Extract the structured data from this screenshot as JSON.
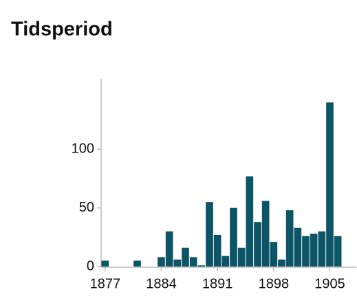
{
  "chart_data": {
    "type": "histogram",
    "title": "Tidsperiod",
    "bins": [
      1877,
      1878,
      1879,
      1880,
      1881,
      1882,
      1883,
      1884,
      1885,
      1886,
      1887,
      1888,
      1889,
      1890,
      1891,
      1892,
      1893,
      1894,
      1895,
      1896,
      1897,
      1898,
      1899,
      1900,
      1901,
      1902,
      1903,
      1904,
      1905,
      1906,
      1907
    ],
    "values": [
      5,
      0,
      0,
      0,
      5,
      0,
      0,
      8,
      30,
      6,
      16,
      8,
      1,
      55,
      27,
      9,
      50,
      16,
      77,
      38,
      56,
      21,
      6,
      48,
      33,
      26,
      28,
      30,
      140,
      26
    ],
    "color": "#0b5567",
    "xlim": [
      1877,
      1907
    ],
    "xticks": [
      1877,
      1884,
      1891,
      1898,
      1905
    ],
    "ylim": [
      0,
      160
    ],
    "yticks": [
      0,
      50,
      100
    ]
  }
}
